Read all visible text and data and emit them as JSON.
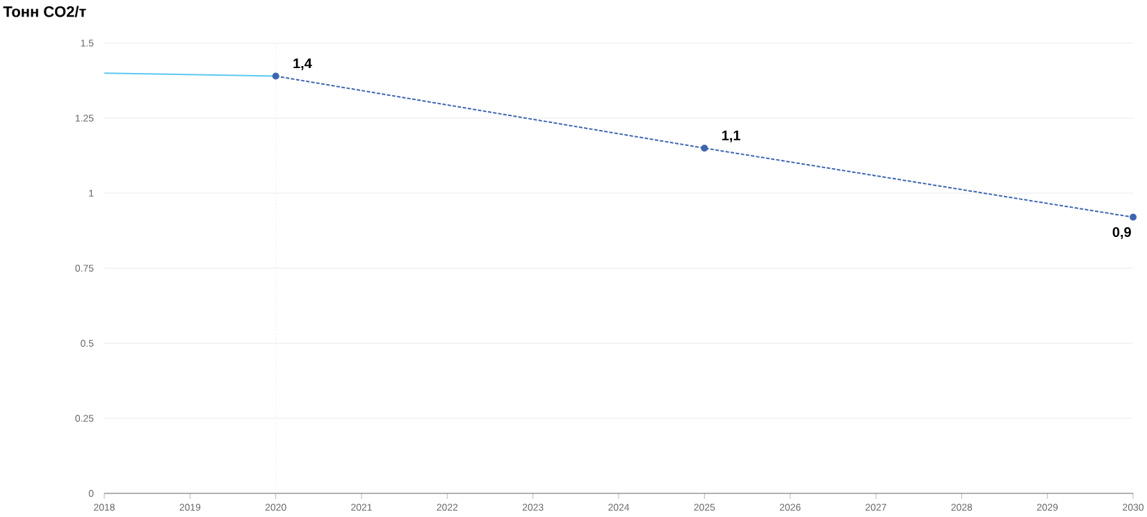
{
  "chart_data": {
    "type": "line",
    "ylabel": "Тонн CO2/т",
    "xlim": [
      2018,
      2030
    ],
    "xticks": [
      2018,
      2019,
      2020,
      2021,
      2022,
      2023,
      2024,
      2025,
      2026,
      2027,
      2028,
      2029,
      2030
    ],
    "ylim": [
      0,
      1.5
    ],
    "yticks": [
      0,
      0.25,
      0.5,
      0.75,
      1,
      1.25,
      1.5
    ],
    "grid": "y",
    "series": [
      {
        "color": "#5bc8f0",
        "x": [
          2018,
          2020
        ],
        "values": [
          1.4,
          1.39
        ],
        "marker": "none",
        "line_style": "solid"
      },
      {
        "color": "#3d66b0",
        "x": [
          2020,
          2025,
          2030
        ],
        "values": [
          1.39,
          1.15,
          0.92
        ],
        "marker": "circle",
        "line_style": "dashed",
        "value_labels": [
          "1,4",
          "1,1",
          "0,9"
        ]
      }
    ],
    "ref_lines": [
      {
        "axis": "x",
        "value": 2020,
        "color": "#cccccc",
        "line_style": "dotted"
      }
    ]
  }
}
